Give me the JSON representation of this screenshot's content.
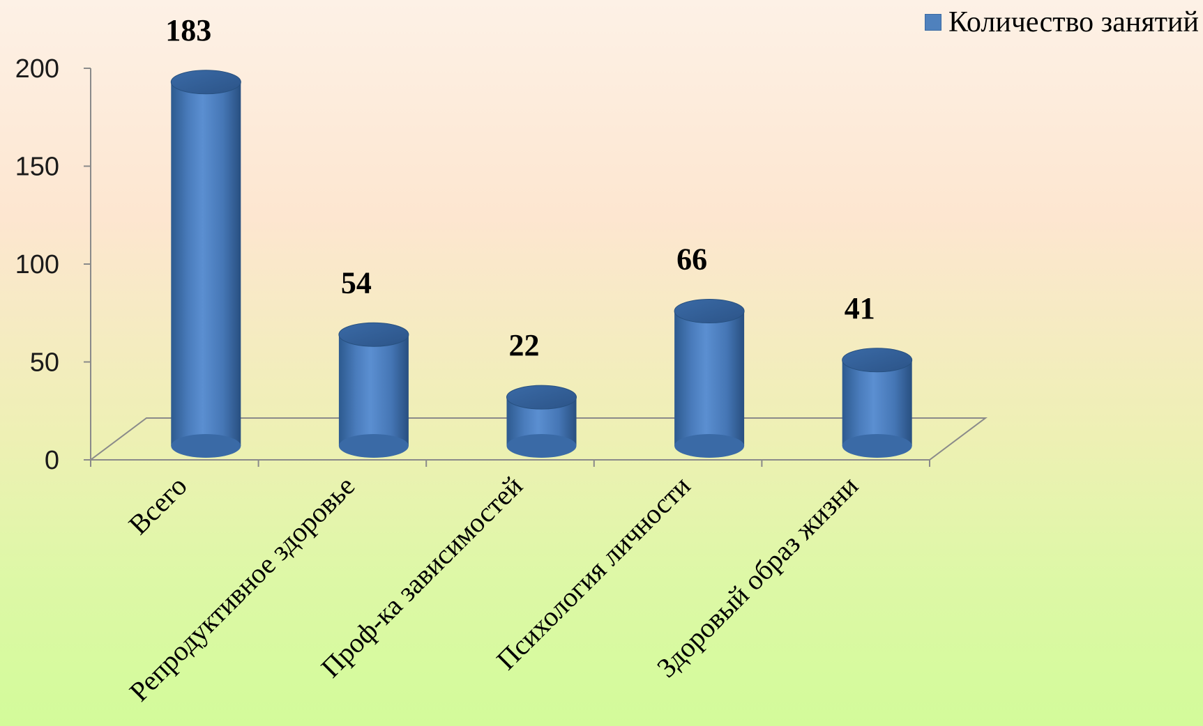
{
  "chart_data": {
    "type": "bar",
    "style": "3d-cylinder",
    "categories": [
      "Всего",
      "Репродуктивное здоровье",
      "Проф-ка зависимостей",
      "Психология личности",
      "Здоровый образ жизни"
    ],
    "series": [
      {
        "name": "Количество занятий",
        "values": [
          183,
          54,
          22,
          66,
          41
        ],
        "color": "#4f81bd"
      }
    ],
    "data_labels": [
      "183",
      "54",
      "22",
      "66",
      "41"
    ],
    "ylim": [
      0,
      200
    ],
    "yticks": [
      0,
      50,
      100,
      150,
      200
    ],
    "legend_position": "top-right",
    "grid": false
  }
}
